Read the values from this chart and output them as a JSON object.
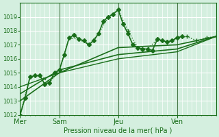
{
  "title": "",
  "xlabel": "Pression niveau de la mer( hPa )",
  "ylabel": "",
  "bg_color": "#d4efdf",
  "grid_color": "#ffffff",
  "line_color": "#1a6e1a",
  "ylim": [
    1012,
    1020
  ],
  "yticks": [
    1012,
    1013,
    1014,
    1015,
    1016,
    1017,
    1018,
    1019
  ],
  "xlim": [
    0,
    240
  ],
  "day_positions": [
    0,
    48,
    120,
    192
  ],
  "day_labels": [
    "Mer",
    "Sam",
    "Jeu",
    "Ven"
  ],
  "series": [
    {
      "x": [
        0,
        6,
        12,
        18,
        24,
        30,
        36,
        42,
        48,
        54,
        60,
        66,
        72,
        78,
        84,
        90,
        96,
        102,
        108,
        114,
        120,
        126,
        132,
        138,
        144,
        150,
        156,
        162,
        168,
        174,
        180,
        186,
        192,
        198
      ],
      "y": [
        1012.0,
        1013.2,
        1014.7,
        1014.8,
        1014.8,
        1014.2,
        1014.3,
        1015.0,
        1015.2,
        1016.3,
        1017.5,
        1017.7,
        1017.4,
        1017.3,
        1017.0,
        1017.3,
        1017.8,
        1018.7,
        1019.0,
        1019.2,
        1019.5,
        1018.5,
        1017.8,
        1017.0,
        1016.8,
        1016.7,
        1016.7,
        1016.6,
        1017.4,
        1017.3,
        1017.2,
        1017.3,
        1017.5,
        1017.6
      ],
      "marker": "D",
      "markersize": 3,
      "linestyle": "-",
      "linewidth": 1.2
    },
    {
      "x": [
        0,
        12,
        24,
        36,
        48,
        60,
        72,
        84,
        96,
        108,
        120,
        132,
        144,
        156,
        168,
        180,
        192,
        204,
        216,
        228,
        240
      ],
      "y": [
        1012.0,
        1014.7,
        1014.8,
        1014.3,
        1015.2,
        1017.5,
        1017.4,
        1017.0,
        1017.8,
        1019.0,
        1019.5,
        1018.0,
        1016.8,
        1016.7,
        1017.4,
        1017.2,
        1017.5,
        1017.6,
        1017.3,
        1017.5,
        1017.6
      ],
      "marker": "+",
      "markersize": 4,
      "linestyle": ":",
      "linewidth": 1.0
    },
    {
      "x": [
        0,
        48,
        120,
        192,
        240
      ],
      "y": [
        1013.0,
        1015.0,
        1016.8,
        1017.0,
        1017.6
      ],
      "marker": "",
      "markersize": 0,
      "linestyle": "-",
      "linewidth": 1.2
    },
    {
      "x": [
        0,
        48,
        120,
        192,
        240
      ],
      "y": [
        1013.5,
        1015.2,
        1016.3,
        1016.7,
        1017.6
      ],
      "marker": "",
      "markersize": 0,
      "linestyle": "-",
      "linewidth": 1.2
    },
    {
      "x": [
        0,
        48,
        120,
        192,
        240
      ],
      "y": [
        1014.0,
        1015.0,
        1016.0,
        1016.5,
        1017.6
      ],
      "marker": "",
      "markersize": 0,
      "linestyle": "-",
      "linewidth": 1.0
    }
  ]
}
